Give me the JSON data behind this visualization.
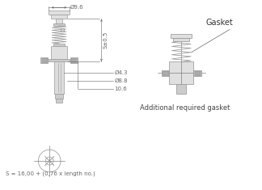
{
  "bg_color": "#ffffff",
  "line_color": "#999999",
  "dim_color": "#666666",
  "annotations": {
    "d96": "Ø9.6",
    "s_label": "S±0.5",
    "d43": "Ø4.3",
    "d88": "Ø8.8",
    "d106": "10.6",
    "gasket": "Gasket",
    "additional": "Additional required gasket",
    "formula": "S = 16,00 + (0,76 x length no.)"
  },
  "font_size_dim": 5.0,
  "font_size_label": 6.0,
  "font_size_formula": 5.0,
  "font_size_gasket": 7.0
}
